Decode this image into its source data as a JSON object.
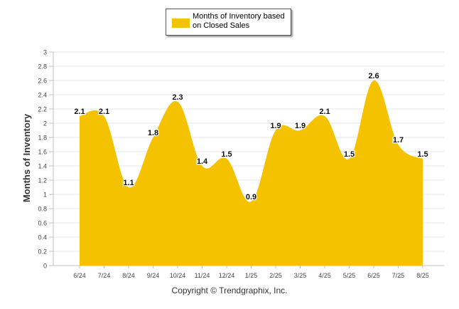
{
  "chart_data": {
    "type": "area",
    "title": "",
    "xlabel": "",
    "ylabel": "Months of Inventory",
    "ylim": [
      0,
      3
    ],
    "yticks": [
      "0",
      "0.2",
      "0.4",
      "0.6",
      "0.8",
      "1",
      "1.2",
      "1.4",
      "1.6",
      "1.8",
      "2",
      "2.2",
      "2.4",
      "2.6",
      "2.8",
      "3"
    ],
    "categories": [
      "6/24",
      "7/24",
      "8/24",
      "9/24",
      "10/24",
      "11/24",
      "12/24",
      "1/25",
      "2/25",
      "3/25",
      "4/25",
      "5/25",
      "6/25",
      "7/25",
      "8/25"
    ],
    "series": [
      {
        "name": "Months of Inventory based on Closed Sales",
        "values": [
          2.1,
          2.1,
          1.1,
          1.8,
          2.3,
          1.4,
          1.5,
          0.9,
          1.9,
          1.9,
          2.1,
          1.5,
          2.6,
          1.7,
          1.5
        ],
        "labels": [
          "2.1",
          "2.1",
          "1.1",
          "1.8",
          "2.3",
          "1.4",
          "1.5",
          "0.9",
          "1.9",
          "1.9",
          "2.1",
          "1.5",
          "2.6",
          "1.7",
          "1.5"
        ],
        "color": "#F5C200"
      }
    ],
    "grid": true,
    "legend_position": "top-center"
  },
  "legend": {
    "label": "Months of Inventory based on Closed Sales"
  },
  "footer": {
    "copyright": "Copyright © Trendgraphix, Inc."
  },
  "colors": {
    "series": "#F5C200",
    "grid": "#e6e6e6",
    "axis": "#c0c0c0"
  }
}
